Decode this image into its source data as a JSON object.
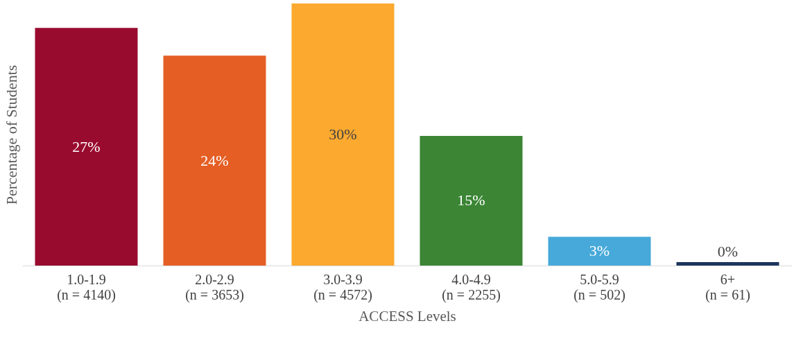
{
  "chart_data": {
    "type": "bar",
    "xlabel": "ACCESS Levels",
    "ylabel": "Percentage of Students",
    "categories": [
      "1.0-1.9\n(n = 4140)",
      "2.0-2.9\n(n = 3653)",
      "3.0-3.9\n(n = 4572)",
      "4.0-4.9\n(n = 2255)",
      "5.0-5.9\n(n = 502)",
      "6+\n(n = 61)"
    ],
    "values": [
      27.3,
      24.1,
      30.1,
      14.9,
      3.3,
      0.4
    ],
    "value_labels": [
      "27%",
      "24%",
      "30%",
      "15%",
      "3%",
      "0%"
    ],
    "colors": [
      "#990a2f",
      "#e55f25",
      "#fba92f",
      "#3b8534",
      "#47a9d9",
      "#1b365d"
    ],
    "grid": false,
    "legend": false
  }
}
